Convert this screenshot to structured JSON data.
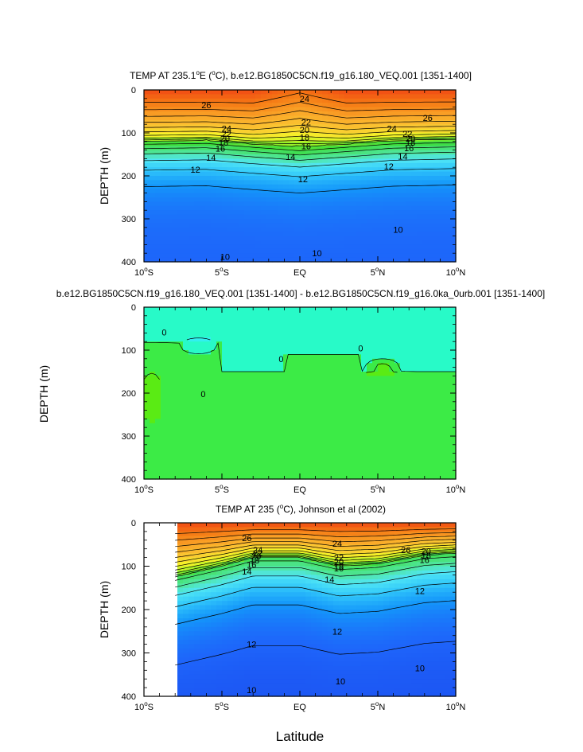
{
  "figure": {
    "xlabel": "Latitude",
    "shared_ylabel": "DEPTH (m)"
  },
  "chart_data": [
    {
      "type": "heatmap",
      "title": "TEMP AT 235.1",
      "title_sup": "o",
      "title_rest": "E (",
      "title_sup2": "o",
      "title_rest2": "C), b.e12.BG1850C5CN.f19_g16.180_VEQ.001 [1351-1400]",
      "ylabel": "DEPTH (m)",
      "xlim": [
        -10,
        10
      ],
      "ylim": [
        0,
        400
      ],
      "y_inverted": true,
      "xticks": [
        {
          "main": "10",
          "sup": "o",
          "suffix": "S"
        },
        {
          "main": "5",
          "sup": "o",
          "suffix": "S"
        },
        {
          "main": "EQ",
          "sup": "",
          "suffix": ""
        },
        {
          "main": "5",
          "sup": "o",
          "suffix": "N"
        },
        {
          "main": "10",
          "sup": "o",
          "suffix": "N"
        }
      ],
      "xtick_values": [
        -10,
        -5,
        0,
        5,
        10
      ],
      "yticks": [
        0,
        100,
        200,
        300,
        400
      ],
      "contour_interval": 1,
      "contour_labels": [
        {
          "text": "26",
          "lat": -6.0,
          "depth": 35
        },
        {
          "text": "24",
          "lat": 0.3,
          "depth": 20
        },
        {
          "text": "26",
          "lat": 8.2,
          "depth": 65
        },
        {
          "text": "22",
          "lat": 0.4,
          "depth": 75
        },
        {
          "text": "24",
          "lat": -4.7,
          "depth": 90
        },
        {
          "text": "22",
          "lat": -4.7,
          "depth": 102
        },
        {
          "text": "20",
          "lat": -4.8,
          "depth": 113
        },
        {
          "text": "18",
          "lat": -4.9,
          "depth": 122
        },
        {
          "text": "16",
          "lat": -5.1,
          "depth": 136
        },
        {
          "text": "14",
          "lat": -5.7,
          "depth": 157
        },
        {
          "text": "12",
          "lat": -6.7,
          "depth": 185
        },
        {
          "text": "20",
          "lat": 0.3,
          "depth": 93
        },
        {
          "text": "18",
          "lat": 0.3,
          "depth": 110
        },
        {
          "text": "16",
          "lat": 0.4,
          "depth": 131
        },
        {
          "text": "14",
          "lat": -0.6,
          "depth": 156
        },
        {
          "text": "12",
          "lat": 0.2,
          "depth": 207
        },
        {
          "text": "24",
          "lat": 5.9,
          "depth": 90
        },
        {
          "text": "22",
          "lat": 6.9,
          "depth": 102
        },
        {
          "text": "20",
          "lat": 7.1,
          "depth": 113
        },
        {
          "text": "18",
          "lat": 7.1,
          "depth": 122
        },
        {
          "text": "16",
          "lat": 7.0,
          "depth": 135
        },
        {
          "text": "14",
          "lat": 6.6,
          "depth": 155
        },
        {
          "text": "12",
          "lat": 5.7,
          "depth": 178
        },
        {
          "text": "10",
          "lat": 6.3,
          "depth": 325
        },
        {
          "text": "10",
          "lat": 1.1,
          "depth": 380
        },
        {
          "text": "10",
          "lat": -4.8,
          "depth": 388
        }
      ]
    },
    {
      "type": "heatmap",
      "title": "b.e12.BG1850C5CN.f19_g16.180_VEQ.001 [1351-1400] - b.e12.BG1850C5CN.f19_g16.0ka_0urb.001 [1351-1400]",
      "ylabel": "DEPTH (m)",
      "xlim": [
        -10,
        10
      ],
      "ylim": [
        0,
        400
      ],
      "y_inverted": true,
      "xticks": [
        {
          "main": "10",
          "sup": "o",
          "suffix": "S"
        },
        {
          "main": "5",
          "sup": "o",
          "suffix": "S"
        },
        {
          "main": "EQ",
          "sup": "",
          "suffix": ""
        },
        {
          "main": "5",
          "sup": "o",
          "suffix": "N"
        },
        {
          "main": "10",
          "sup": "o",
          "suffix": "N"
        }
      ],
      "xtick_values": [
        -10,
        -5,
        0,
        5,
        10
      ],
      "yticks": [
        0,
        100,
        200,
        300,
        400
      ],
      "contour_labels": [
        {
          "text": "0",
          "lat": -8.7,
          "depth": 58
        },
        {
          "text": "0",
          "lat": -1.2,
          "depth": 120
        },
        {
          "text": "0",
          "lat": 3.9,
          "depth": 95
        },
        {
          "text": "0",
          "lat": -6.2,
          "depth": 202
        }
      ]
    },
    {
      "type": "heatmap",
      "title": "TEMP AT 235 (",
      "title_sup": "o",
      "title_rest": "C), Johnson et al (2002)",
      "ylabel": "DEPTH (m)",
      "xlim": [
        -10,
        10
      ],
      "ylim": [
        0,
        400
      ],
      "y_inverted": true,
      "data_xrange": [
        -8,
        10
      ],
      "xticks": [
        {
          "main": "10",
          "sup": "o",
          "suffix": "S"
        },
        {
          "main": "5",
          "sup": "o",
          "suffix": "S"
        },
        {
          "main": "EQ",
          "sup": "",
          "suffix": ""
        },
        {
          "main": "5",
          "sup": "o",
          "suffix": "N"
        },
        {
          "main": "10",
          "sup": "o",
          "suffix": "N"
        }
      ],
      "xtick_values": [
        -10,
        -5,
        0,
        5,
        10
      ],
      "yticks": [
        0,
        100,
        200,
        300,
        400
      ],
      "contour_interval": 1,
      "contour_labels": [
        {
          "text": "26",
          "lat": -3.4,
          "depth": 35
        },
        {
          "text": "24",
          "lat": 2.4,
          "depth": 48
        },
        {
          "text": "26",
          "lat": 6.8,
          "depth": 62
        },
        {
          "text": "24",
          "lat": -2.7,
          "depth": 62
        },
        {
          "text": "22",
          "lat": -2.7,
          "depth": 70
        },
        {
          "text": "20",
          "lat": -2.8,
          "depth": 77
        },
        {
          "text": "18",
          "lat": -2.9,
          "depth": 86
        },
        {
          "text": "16",
          "lat": -3.1,
          "depth": 96
        },
        {
          "text": "14",
          "lat": -3.4,
          "depth": 112
        },
        {
          "text": "22",
          "lat": 2.5,
          "depth": 80
        },
        {
          "text": "20",
          "lat": 2.5,
          "depth": 90
        },
        {
          "text": "18",
          "lat": 2.5,
          "depth": 100
        },
        {
          "text": "16",
          "lat": 2.5,
          "depth": 105
        },
        {
          "text": "14",
          "lat": 1.9,
          "depth": 130
        },
        {
          "text": "20",
          "lat": 8.1,
          "depth": 65
        },
        {
          "text": "18",
          "lat": 8.1,
          "depth": 75
        },
        {
          "text": "16",
          "lat": 8.0,
          "depth": 85
        },
        {
          "text": "12",
          "lat": 7.7,
          "depth": 157
        },
        {
          "text": "12",
          "lat": 2.4,
          "depth": 250
        },
        {
          "text": "12",
          "lat": -3.1,
          "depth": 280
        },
        {
          "text": "10",
          "lat": 7.7,
          "depth": 335
        },
        {
          "text": "10",
          "lat": 2.6,
          "depth": 365
        },
        {
          "text": "10",
          "lat": -3.1,
          "depth": 385
        }
      ]
    }
  ]
}
